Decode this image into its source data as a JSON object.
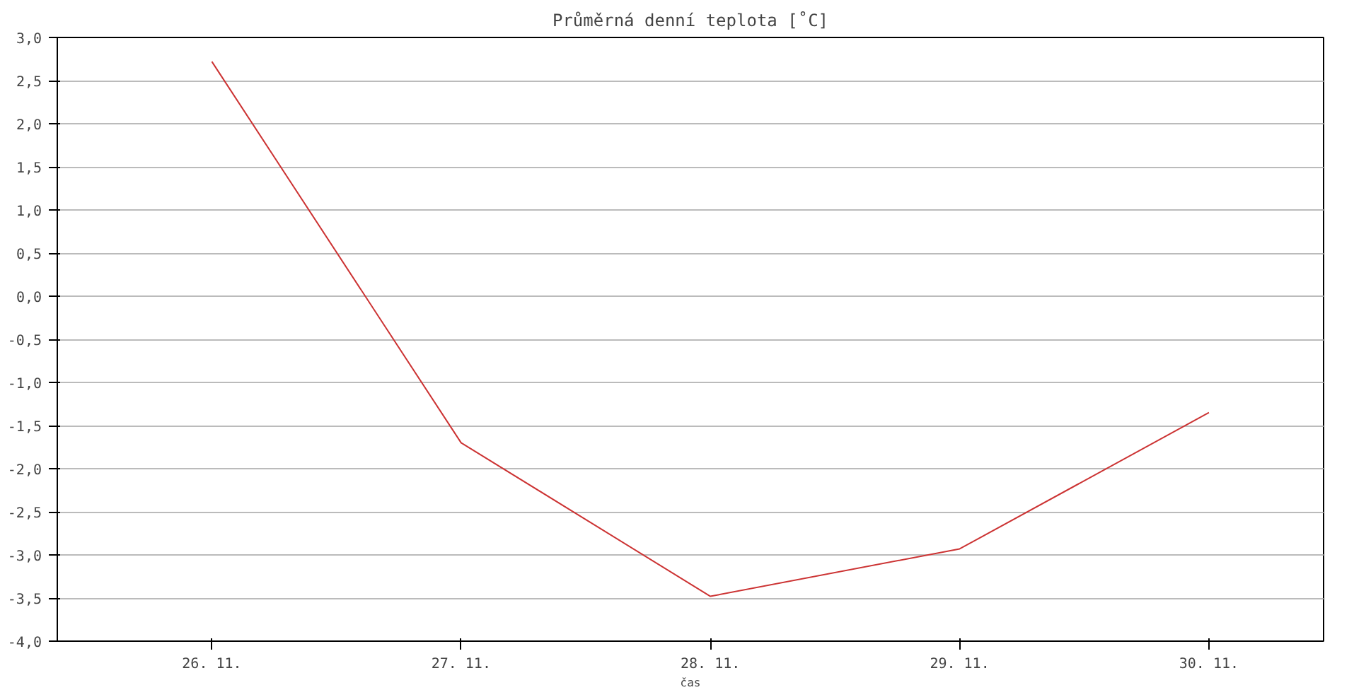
{
  "chart_data": {
    "type": "line",
    "title": "Průměrná denní teplota [˚C]",
    "xlabel": "čas",
    "categories": [
      "26. 11.",
      "27. 11.",
      "28. 11.",
      "29. 11.",
      "30. 11."
    ],
    "series": [
      {
        "color": "#cc3333",
        "values": [
          2.72,
          -1.7,
          -3.48,
          -2.93,
          -1.35
        ]
      }
    ],
    "ylim": [
      -4.0,
      3.0
    ],
    "yticks": [
      {
        "value": -4.0,
        "label": "-4,0"
      },
      {
        "value": -3.5,
        "label": "-3,5"
      },
      {
        "value": -3.0,
        "label": "-3,0"
      },
      {
        "value": -2.5,
        "label": "-2,5"
      },
      {
        "value": -2.0,
        "label": "-2,0"
      },
      {
        "value": -1.5,
        "label": "-1,5"
      },
      {
        "value": -1.0,
        "label": "-1,0"
      },
      {
        "value": -0.5,
        "label": "-0,5"
      },
      {
        "value": 0.0,
        "label": "0,0"
      },
      {
        "value": 0.5,
        "label": "0,5"
      },
      {
        "value": 1.0,
        "label": "1,0"
      },
      {
        "value": 1.5,
        "label": "1,5"
      },
      {
        "value": 2.0,
        "label": "2,0"
      },
      {
        "value": 2.5,
        "label": "2,5"
      },
      {
        "value": 3.0,
        "label": "3,0"
      }
    ],
    "grid": "y",
    "marker": "none",
    "line_style": "solid"
  }
}
